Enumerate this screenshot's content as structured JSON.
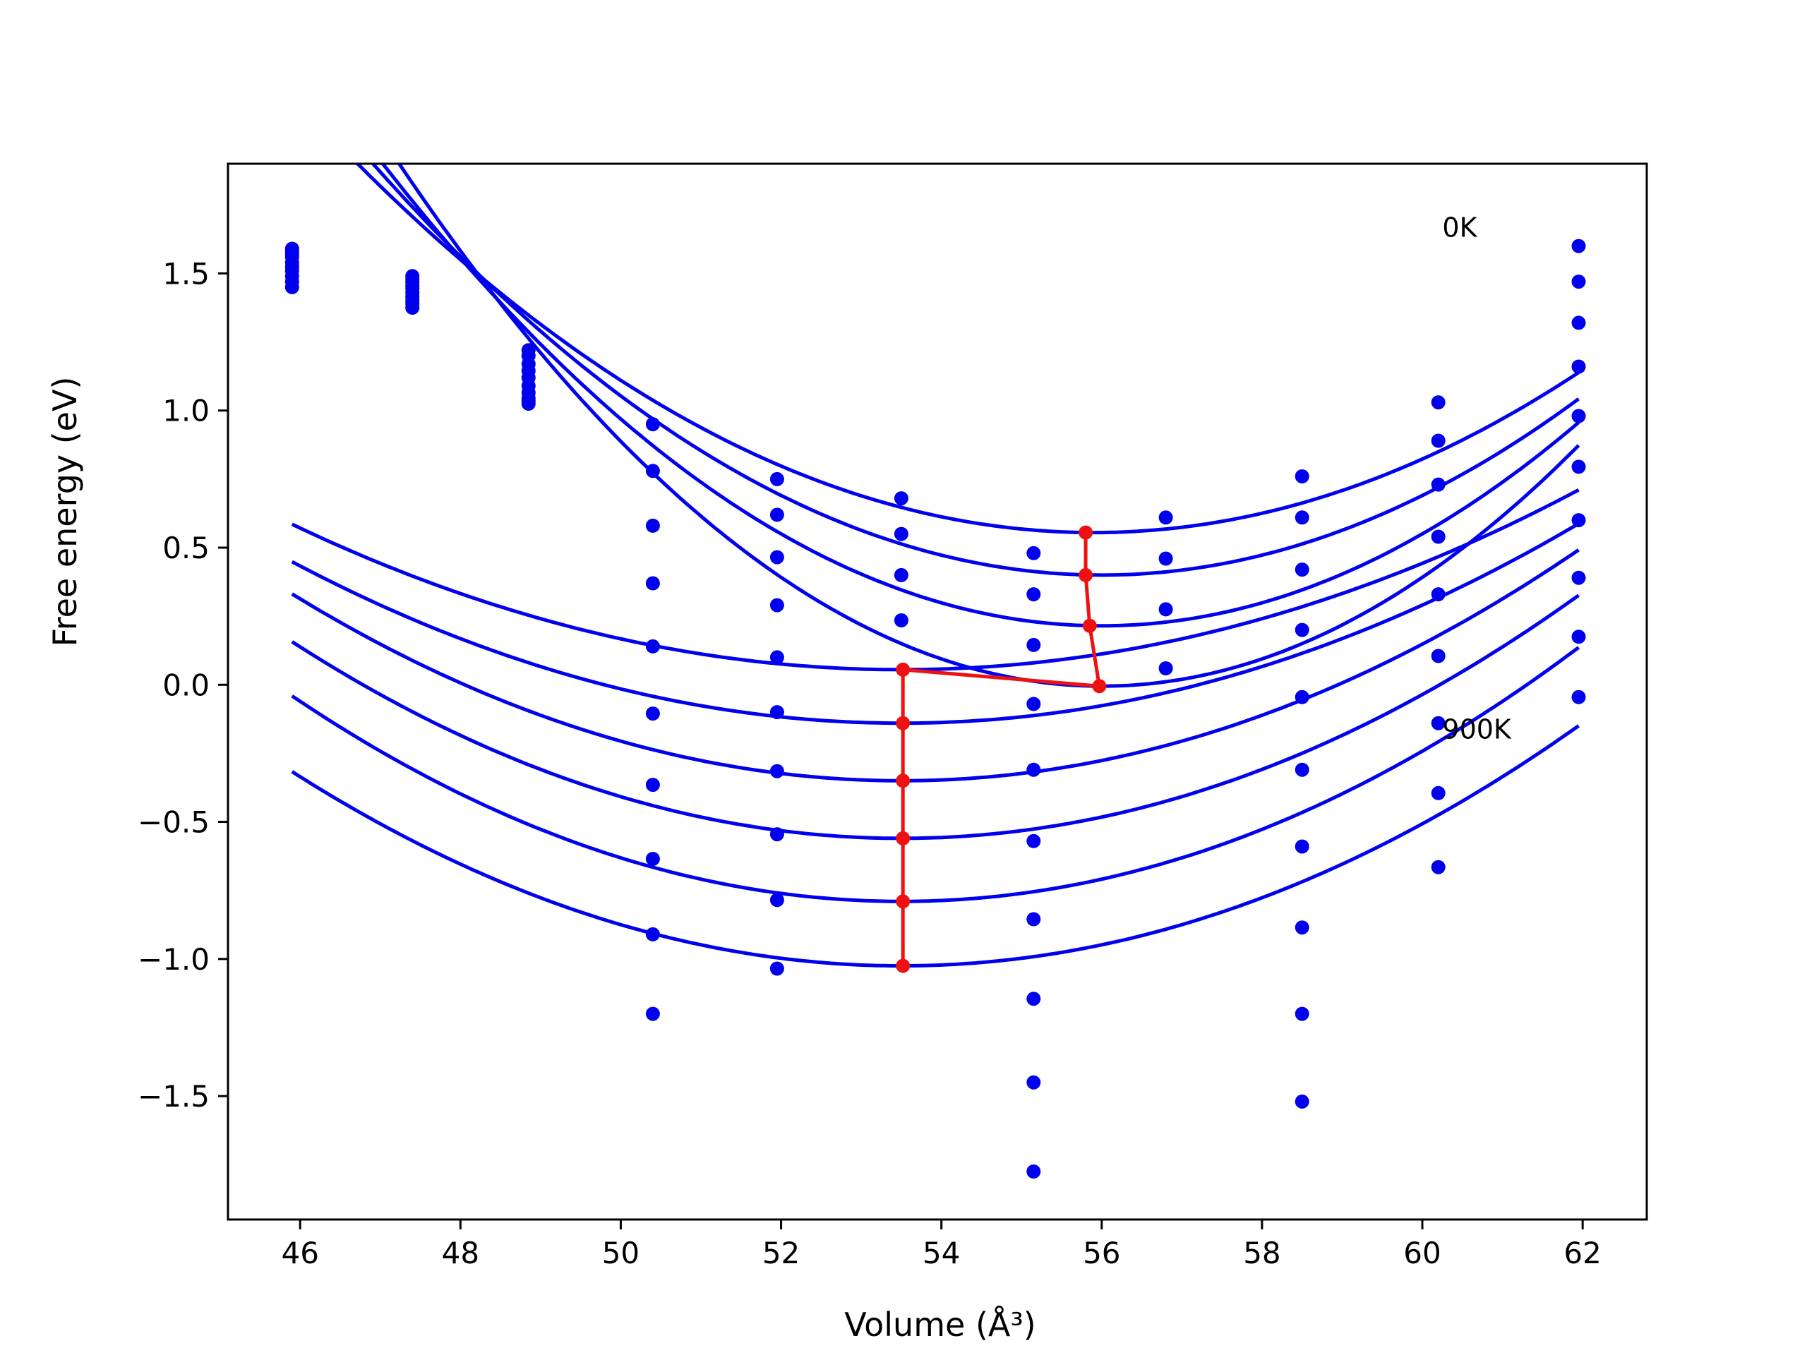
{
  "chart_data": {
    "type": "line",
    "title": "",
    "xlabel": "Volume (Å³)",
    "ylabel": "Free energy (eV)",
    "xlim": [
      45.1,
      62.8
    ],
    "ylim": [
      -1.95,
      1.9
    ],
    "xticks": [
      46,
      48,
      50,
      52,
      54,
      56,
      58,
      60,
      62
    ],
    "xtick_labels": [
      "46",
      "48",
      "50",
      "52",
      "54",
      "56",
      "58",
      "60",
      "62"
    ],
    "yticks": [
      -1.5,
      -1.0,
      -0.5,
      0.0,
      0.5,
      1.0,
      1.5
    ],
    "ytick_labels": [
      "−1.5",
      "−1.0",
      "−0.5",
      "0.0",
      "0.5",
      "1.0",
      "1.5"
    ],
    "grid": false,
    "annotations": [
      {
        "text": "0K",
        "x": 60.25,
        "y": 1.67
      },
      {
        "text": "900K",
        "x": 60.25,
        "y": -0.16
      }
    ],
    "colors": {
      "fit": "#0000ee",
      "points": "#0000ee",
      "minimum_path": "#ee1111"
    },
    "volumes": [
      45.9,
      47.4,
      48.85,
      50.4,
      51.95,
      53.5,
      55.15,
      56.8,
      58.5,
      60.2,
      61.95
    ],
    "fit_curves": [
      {
        "V0": 55.9,
        "E0": 0.555,
        "a": 0.01595
      },
      {
        "V0": 56.0,
        "E0": 0.4,
        "a": 0.01815
      },
      {
        "V0": 56.0,
        "E0": 0.215,
        "a": 0.02095
      },
      {
        "V0": 56.0,
        "E0": -0.005,
        "a": 0.0248
      },
      {
        "V0": 53.5,
        "E0": 0.055,
        "a": 0.00918
      },
      {
        "V0": 53.5,
        "E0": -0.14,
        "a": 0.01019
      },
      {
        "V0": 53.5,
        "E0": -0.35,
        "a": 0.01179
      },
      {
        "V0": 53.5,
        "E0": -0.56,
        "a": 0.01241
      },
      {
        "V0": 53.5,
        "E0": -0.79,
        "a": 0.01297
      },
      {
        "V0": 53.5,
        "E0": -1.025,
        "a": 0.01226
      }
    ],
    "fit_range": [
      45.9,
      61.95
    ],
    "point_series": [
      [
        1.59,
        1.49,
        1.22,
        0.95,
        0.75,
        0.68,
        0.48,
        0.61,
        0.76,
        1.03,
        1.6
      ],
      [
        1.58,
        1.48,
        1.2,
        0.78,
        0.62,
        0.55,
        0.33,
        0.46,
        0.61,
        0.89,
        1.47
      ],
      [
        1.57,
        1.47,
        1.17,
        0.58,
        0.465,
        0.4,
        0.145,
        0.275,
        0.42,
        0.73,
        1.32
      ],
      [
        1.56,
        1.455,
        1.145,
        0.37,
        0.29,
        0.235,
        -0.07,
        0.06,
        0.2,
        0.54,
        1.16
      ],
      [
        1.54,
        1.445,
        1.12,
        0.14,
        0.1,
        null,
        -0.31,
        null,
        -0.045,
        0.33,
        0.98
      ],
      [
        1.525,
        1.43,
        1.09,
        -0.105,
        -0.1,
        null,
        -0.57,
        null,
        -0.31,
        0.105,
        0.795
      ],
      [
        1.51,
        1.415,
        1.065,
        -0.365,
        -0.315,
        null,
        -0.855,
        null,
        -0.59,
        -0.14,
        0.6
      ],
      [
        1.49,
        1.4,
        1.045,
        -0.635,
        -0.545,
        null,
        -1.145,
        null,
        -0.885,
        -0.395,
        0.39
      ],
      [
        1.47,
        1.39,
        1.025,
        -0.91,
        -0.785,
        null,
        -1.45,
        null,
        -1.2,
        -0.665,
        0.175
      ],
      [
        1.45,
        1.375,
        1.035,
        -1.2,
        -1.035,
        null,
        -1.775,
        null,
        -1.52,
        null,
        -0.045
      ]
    ],
    "minimum_path": {
      "x": [
        55.8,
        55.8,
        55.85,
        55.97,
        53.52,
        53.52,
        53.52,
        53.52,
        53.52,
        53.52
      ],
      "y": [
        0.555,
        0.4,
        0.215,
        -0.005,
        0.055,
        -0.14,
        -0.35,
        -0.56,
        -0.79,
        -1.025
      ]
    }
  }
}
